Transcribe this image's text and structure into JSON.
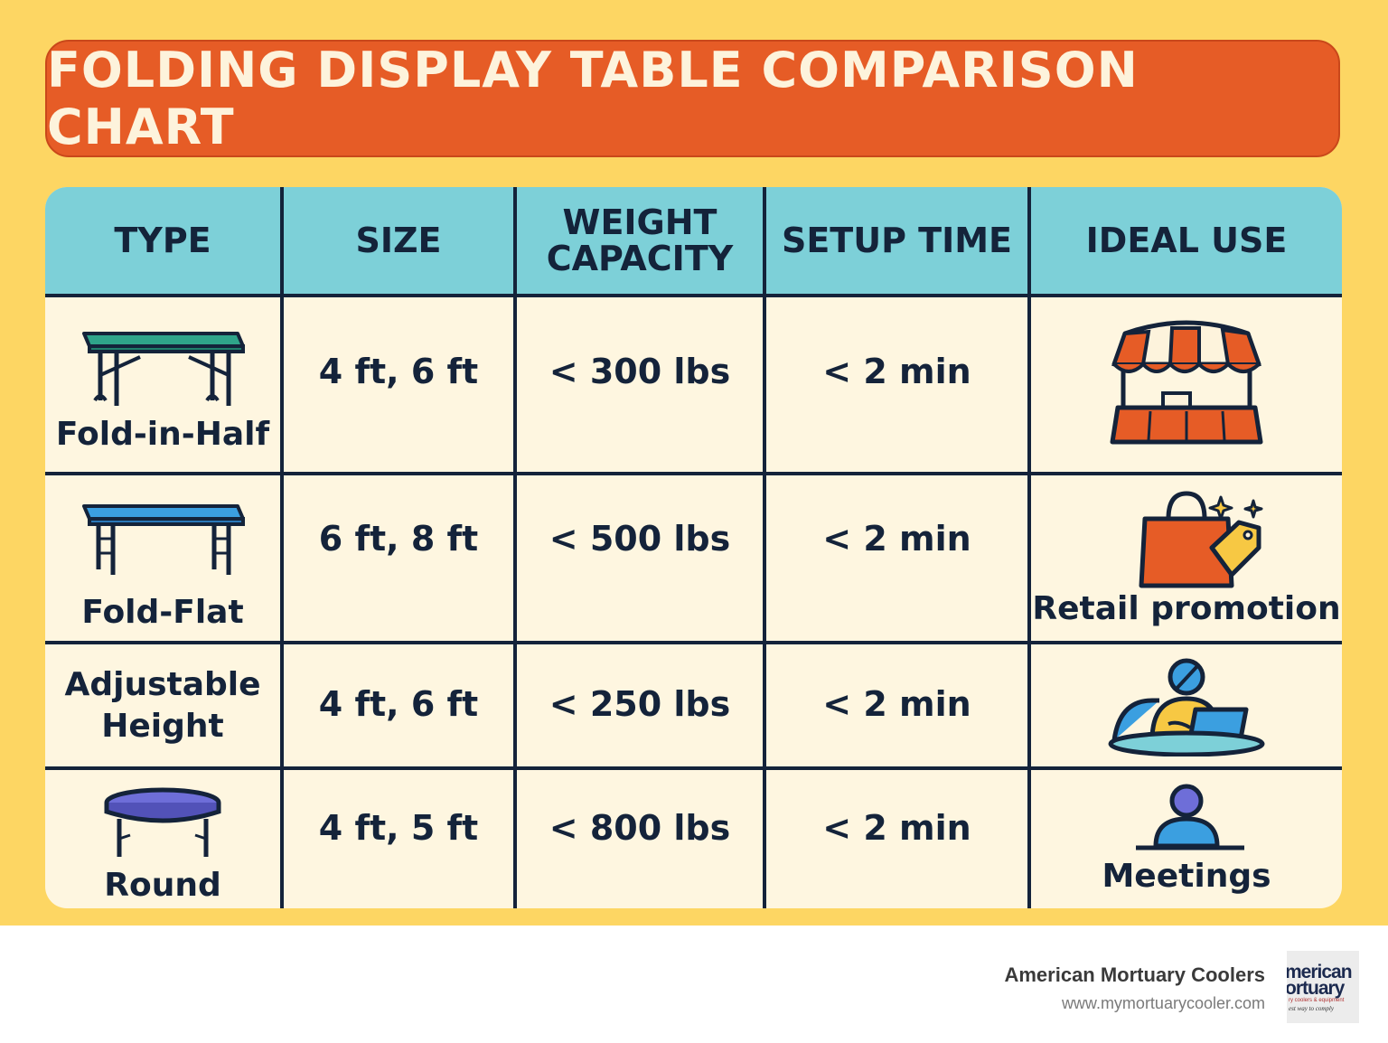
{
  "title": "FOLDING DISPLAY TABLE COMPARISON CHART",
  "table": {
    "headers": [
      "TYPE",
      "SIZE",
      "WEIGHT CAPACITY",
      "SETUP TIME",
      "IDEAL USE"
    ],
    "rows": [
      {
        "type": "Fold-in-Half",
        "type_icon": "teal-folding-table-icon",
        "size": "4 ft, 6 ft",
        "weight_capacity": "< 300 lbs",
        "setup_time": "< 2 min",
        "ideal_use": "",
        "ideal_use_icon": "market-stall-icon"
      },
      {
        "type": "Fold-Flat",
        "type_icon": "blue-folding-table-icon",
        "size": "6 ft, 8 ft",
        "weight_capacity": "< 500 lbs",
        "setup_time": "< 2 min",
        "ideal_use": "Retail promotion",
        "ideal_use_icon": "shopping-bag-tag-icon"
      },
      {
        "type": "Adjustable Height",
        "type_icon": "",
        "size": "4 ft, 6 ft",
        "weight_capacity": "< 250 lbs",
        "setup_time": "< 2 min",
        "ideal_use": "",
        "ideal_use_icon": "person-laptop-icon"
      },
      {
        "type": "Round",
        "type_icon": "round-table-icon",
        "size": "4 ft, 5 ft",
        "weight_capacity": "< 800 lbs",
        "setup_time": "< 2 min",
        "ideal_use": "Meetings",
        "ideal_use_icon": "person-at-table-icon"
      }
    ]
  },
  "footer": {
    "brand_name": "American Mortuary Coolers",
    "url": "www.mymortuarycooler.com",
    "logo_text": [
      "merican",
      "ortuary",
      "ry coolers & equipment",
      "est way to comply"
    ]
  },
  "colors": {
    "background": "#fdd663",
    "title_bar": "#e65c26",
    "header_row": "#7dd0d8",
    "body_row": "#fef6e0",
    "grid_lines": "#14233a"
  }
}
